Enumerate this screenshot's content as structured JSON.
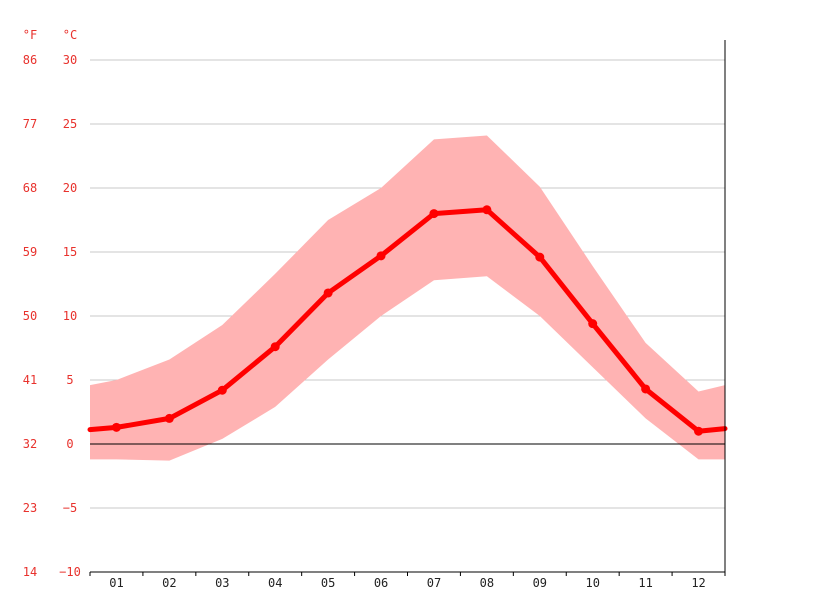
{
  "chart_data": {
    "type": "area",
    "units": {
      "fahrenheit": "°F",
      "celsius": "°C"
    },
    "categories": [
      "01",
      "02",
      "03",
      "04",
      "05",
      "06",
      "07",
      "08",
      "09",
      "10",
      "11",
      "12"
    ],
    "ylim": [
      -10,
      30
    ],
    "y_ticks_celsius": [
      30,
      25,
      20,
      15,
      10,
      5,
      0,
      -5,
      -10
    ],
    "y_ticks_celsius_labels": [
      "30",
      "25",
      "20",
      "15",
      "10",
      "5",
      "0",
      "−5",
      "−10"
    ],
    "y_ticks_fahrenheit": [
      "86",
      "77",
      "68",
      "59",
      "50",
      "41",
      "32",
      "23",
      "14"
    ],
    "grid": true,
    "series": [
      {
        "values": [
          1.3,
          2.0,
          4.2,
          7.6,
          11.8,
          14.7,
          18.0,
          18.3,
          14.6,
          9.4,
          4.3,
          1.0
        ]
      }
    ],
    "range": {
      "x": [
        0.5,
        1.0,
        2.0,
        3.0,
        4.0,
        5.0,
        6.0,
        7.0,
        8.0,
        9.0,
        10.0,
        11.0,
        12.0,
        12.5
      ],
      "max": [
        4.6,
        5.0,
        6.6,
        9.3,
        13.3,
        17.5,
        20.0,
        23.8,
        24.1,
        20.1,
        13.9,
        7.9,
        4.1,
        4.6
      ],
      "min": [
        -1.2,
        -1.2,
        -1.3,
        0.4,
        2.9,
        6.6,
        10.0,
        12.8,
        13.1,
        10.0,
        6.0,
        2.0,
        -1.2,
        -1.2
      ]
    },
    "colors": {
      "line": "#ff0000",
      "band": "#ffb3b3",
      "grid": "#c8c8c8",
      "zero_line": "#000000",
      "tick_text_y": "#e8322d",
      "tick_text_x": "#222222"
    }
  }
}
